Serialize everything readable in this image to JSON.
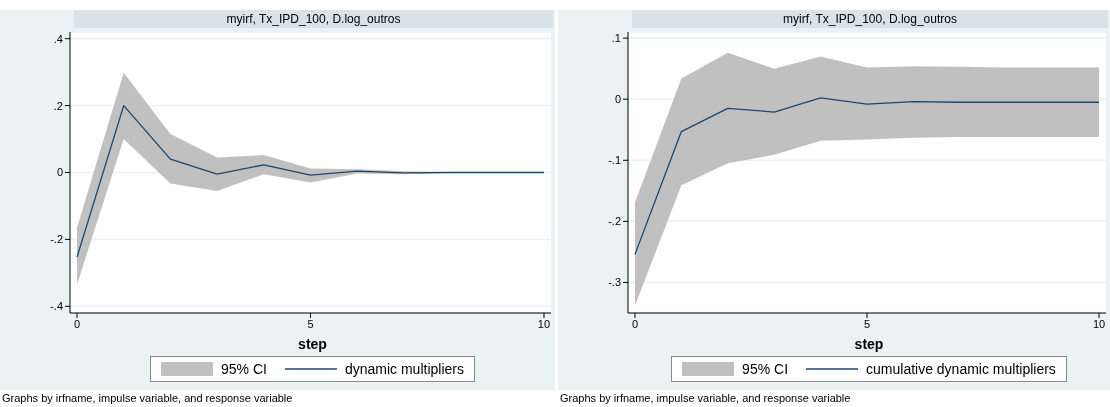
{
  "chart_data": [
    {
      "type": "line",
      "title": "myirf, Tx_IPD_100, D.log_outros",
      "xlabel": "step",
      "x": [
        0,
        1,
        2,
        3,
        4,
        5,
        6,
        7,
        8,
        9,
        10
      ],
      "series": [
        {
          "name": "dynamic multipliers",
          "color": "#1a476f",
          "values": [
            -0.253,
            0.2,
            0.04,
            -0.005,
            0.023,
            -0.008,
            0.004,
            -0.001,
            0,
            0,
            0
          ],
          "lower": [
            -0.335,
            0.1,
            -0.033,
            -0.055,
            -0.005,
            -0.03,
            -0.003,
            -0.005,
            -0.001,
            -0.001,
            -0.001
          ],
          "upper": [
            -0.165,
            0.298,
            0.115,
            0.045,
            0.052,
            0.012,
            0.01,
            0.004,
            0.001,
            0.001,
            0.001
          ]
        }
      ],
      "xlim": [
        -0.15,
        10.15
      ],
      "xticks": [
        0,
        5,
        10
      ],
      "ylim": [
        -0.42,
        0.42
      ],
      "yticks": [
        {
          "value": -0.4,
          "label": "-.4"
        },
        {
          "value": -0.2,
          "label": "-.2"
        },
        0,
        {
          "value": 0.2,
          "label": ".2"
        },
        {
          "value": 0.4,
          "label": ".4"
        }
      ],
      "grid": "y",
      "legend": "bottom",
      "marker": "none",
      "annotations": [
        "95% CI",
        "Graphs by irfname, impulse variable, and response variable"
      ]
    },
    {
      "type": "line",
      "title": "myirf, Tx_IPD_100, D.log_outros",
      "xlabel": "step",
      "x": [
        0,
        1,
        2,
        3,
        4,
        5,
        6,
        7,
        8,
        9,
        10
      ],
      "series": [
        {
          "name": "cumulative dynamic multipliers",
          "color": "#1a476f",
          "values": [
            -0.254,
            -0.053,
            -0.015,
            -0.021,
            0.002,
            -0.008,
            -0.004,
            -0.005,
            -0.005,
            -0.005,
            -0.005
          ],
          "lower": [
            -0.338,
            -0.141,
            -0.105,
            -0.091,
            -0.068,
            -0.066,
            -0.063,
            -0.062,
            -0.062,
            -0.062,
            -0.062
          ],
          "upper": [
            -0.169,
            0.034,
            0.076,
            0.05,
            0.07,
            0.052,
            0.054,
            0.053,
            0.052,
            0.052,
            0.052
          ]
        }
      ],
      "xlim": [
        -0.15,
        10.15
      ],
      "xticks": [
        0,
        5,
        10
      ],
      "ylim": [
        -0.35,
        0.11
      ],
      "yticks": [
        {
          "value": -0.3,
          "label": "-.3"
        },
        {
          "value": -0.2,
          "label": "-.2"
        },
        {
          "value": -0.1,
          "label": "-.1"
        },
        0,
        {
          "value": 0.1,
          "label": ".1"
        }
      ],
      "grid": "y",
      "legend": "bottom",
      "marker": "none",
      "annotations": [
        "95% CI",
        "Graphs by irfname, impulse variable, and response variable"
      ]
    }
  ]
}
